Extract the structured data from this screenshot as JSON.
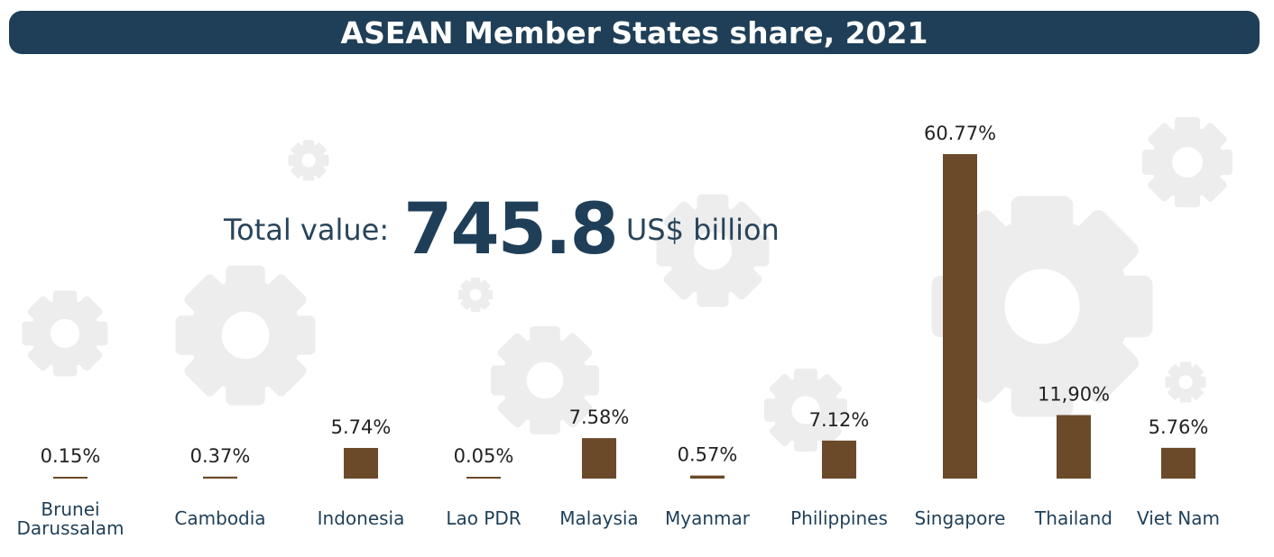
{
  "title": "ASEAN Member States share, 2021",
  "total": {
    "label": "Total value:",
    "value": "745.8",
    "unit": "US$ billion"
  },
  "colors": {
    "title_bg": "#1f3f58",
    "bar": "#6b4a2a",
    "text": "#222222",
    "gear": "#ececec"
  },
  "chart_data": {
    "type": "bar",
    "title": "ASEAN Member States share, 2021",
    "xlabel": "",
    "ylabel": "",
    "ylim": [
      0,
      62
    ],
    "grid": false,
    "categories": [
      "Brunei Darussalam",
      "Cambodia",
      "Indonesia",
      "Lao PDR",
      "Malaysia",
      "Myanmar",
      "Philippines",
      "Singapore",
      "Thailand",
      "Viet Nam"
    ],
    "category_lines": [
      [
        "Brunei",
        "Darussalam"
      ],
      [
        "Cambodia"
      ],
      [
        "Indonesia"
      ],
      [
        "Lao PDR"
      ],
      [
        "Malaysia"
      ],
      [
        "Myanmar"
      ],
      [
        "Philippines"
      ],
      [
        "Singapore"
      ],
      [
        "Thailand"
      ],
      [
        "Viet Nam"
      ]
    ],
    "values": [
      0.15,
      0.37,
      5.74,
      0.05,
      7.58,
      0.57,
      7.12,
      60.77,
      11.9,
      5.76
    ],
    "value_labels": [
      "0.15%",
      "0.37%",
      "5.74%",
      "0.05%",
      "7.58%",
      "0.57%",
      "7.12%",
      "60.77%",
      "11,90%",
      "5.76%"
    ]
  }
}
